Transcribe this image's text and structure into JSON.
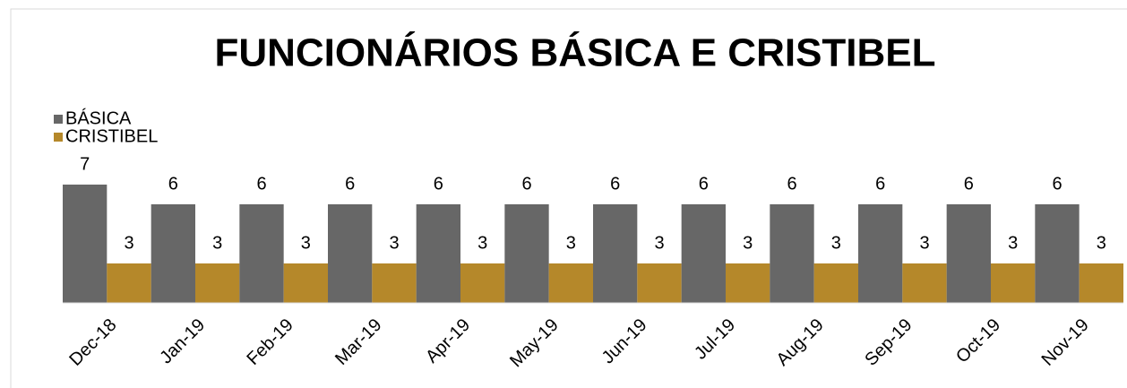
{
  "chart_data": {
    "type": "bar",
    "title": "FUNCIONÁRIOS BÁSICA E CRISTIBEL",
    "categories": [
      "Dec-18",
      "Jan-19",
      "Feb-19",
      "Mar-19",
      "Apr-19",
      "May-19",
      "Jun-19",
      "Jul-19",
      "Aug-19",
      "Sep-19",
      "Oct-19",
      "Nov-19"
    ],
    "series": [
      {
        "name": "BÁSICA",
        "color": "#676767",
        "values": [
          7,
          6,
          6,
          6,
          6,
          6,
          6,
          6,
          6,
          6,
          6,
          6
        ]
      },
      {
        "name": "CRISTIBEL",
        "color": "#b5882a",
        "values": [
          3,
          3,
          3,
          3,
          3,
          3,
          3,
          3,
          3,
          3,
          3,
          3
        ]
      }
    ],
    "ylim": [
      1,
      8
    ],
    "legend": "top-left"
  }
}
